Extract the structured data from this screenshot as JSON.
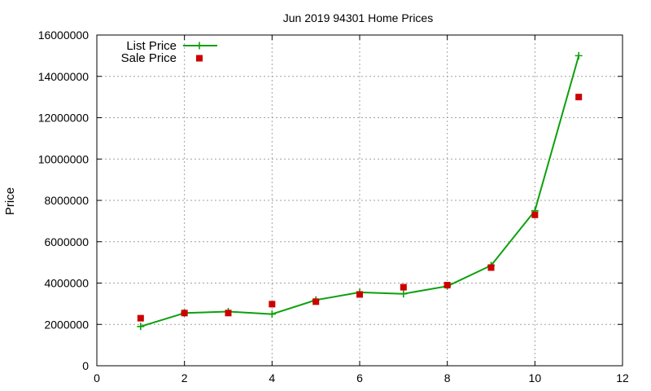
{
  "chart_data": {
    "type": "line",
    "title": "Jun 2019 94301 Home Prices",
    "xlabel": "",
    "ylabel": "Price",
    "xlim": [
      0,
      12
    ],
    "ylim": [
      0,
      16000000
    ],
    "x_ticks": [
      0,
      2,
      4,
      6,
      8,
      10,
      12
    ],
    "y_ticks": [
      0,
      2000000,
      4000000,
      6000000,
      8000000,
      10000000,
      12000000,
      14000000,
      16000000
    ],
    "grid": true,
    "legend_position": "top-left",
    "series": [
      {
        "name": "List Price",
        "style": "line with plus markers",
        "color": "#0ca00c",
        "x": [
          1,
          2,
          3,
          4,
          5,
          6,
          7,
          8,
          9,
          10,
          11
        ],
        "y": [
          1900000,
          2550000,
          2620000,
          2500000,
          3180000,
          3550000,
          3480000,
          3850000,
          4850000,
          7500000,
          15000000
        ]
      },
      {
        "name": "Sale Price",
        "style": "square markers",
        "color": "#cc0000",
        "x": [
          1,
          2,
          3,
          4,
          5,
          6,
          7,
          8,
          9,
          10,
          11
        ],
        "y": [
          2300000,
          2550000,
          2550000,
          2980000,
          3100000,
          3450000,
          3800000,
          3900000,
          4750000,
          7300000,
          13000000
        ]
      }
    ]
  }
}
